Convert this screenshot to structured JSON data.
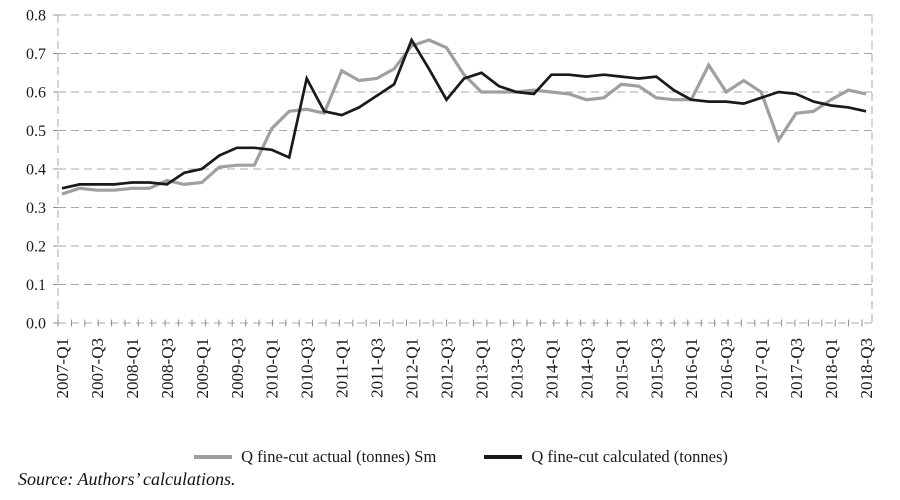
{
  "chart_data": {
    "type": "line",
    "title": "",
    "x_axis": {
      "tick_every": 2,
      "tick_labels": [
        "2007-Q1",
        "2007-Q3",
        "2008-Q1",
        "2008-Q3",
        "2009-Q1",
        "2009-Q3",
        "2010-Q1",
        "2010-Q3",
        "2011-Q1",
        "2011-Q3",
        "2012-Q1",
        "2012-Q3",
        "2013-Q1",
        "2013-Q3",
        "2014-Q1",
        "2014-Q3",
        "2015-Q1",
        "2015-Q3",
        "2016-Q1",
        "2016-Q3",
        "2017-Q1",
        "2017-Q3",
        "2018-Q1",
        "2018-Q3"
      ],
      "categories": [
        "2007-Q1",
        "2007-Q2",
        "2007-Q3",
        "2007-Q4",
        "2008-Q1",
        "2008-Q2",
        "2008-Q3",
        "2008-Q4",
        "2009-Q1",
        "2009-Q2",
        "2009-Q3",
        "2009-Q4",
        "2010-Q1",
        "2010-Q2",
        "2010-Q3",
        "2010-Q4",
        "2011-Q1",
        "2011-Q2",
        "2011-Q3",
        "2011-Q4",
        "2012-Q1",
        "2012-Q2",
        "2012-Q3",
        "2012-Q4",
        "2013-Q1",
        "2013-Q2",
        "2013-Q3",
        "2013-Q4",
        "2014-Q1",
        "2014-Q2",
        "2014-Q3",
        "2014-Q4",
        "2015-Q1",
        "2015-Q2",
        "2015-Q3",
        "2015-Q4",
        "2016-Q1",
        "2016-Q2",
        "2016-Q3",
        "2016-Q4",
        "2017-Q1",
        "2017-Q2",
        "2017-Q3",
        "2017-Q4",
        "2018-Q1",
        "2018-Q2",
        "2018-Q3"
      ]
    },
    "y_axis": {
      "min": 0.0,
      "max": 0.8,
      "step": 0.1,
      "tick_labels": [
        "0.0",
        "0.1",
        "0.2",
        "0.3",
        "0.4",
        "0.5",
        "0.6",
        "0.7",
        "0.8"
      ]
    },
    "grid": "horizontal-dashed",
    "legend_position": "bottom-center",
    "series": [
      {
        "name": "Q fine-cut actual (tonnes) Sm",
        "color": "#a0a0a0",
        "width": 3.2,
        "values": [
          0.335,
          0.35,
          0.345,
          0.345,
          0.35,
          0.35,
          0.37,
          0.36,
          0.365,
          0.405,
          0.41,
          0.41,
          0.505,
          0.55,
          0.555,
          0.545,
          0.655,
          0.63,
          0.635,
          0.66,
          0.72,
          0.735,
          0.715,
          0.645,
          0.6,
          0.6,
          0.6,
          0.605,
          0.6,
          0.595,
          0.58,
          0.585,
          0.62,
          0.615,
          0.585,
          0.58,
          0.58,
          0.67,
          0.6,
          0.63,
          0.6,
          0.475,
          0.545,
          0.55,
          0.58,
          0.605,
          0.595
        ]
      },
      {
        "name": "Q fine-cut calculated (tonnes)",
        "color": "#1a1a1a",
        "width": 2.7,
        "values": [
          0.35,
          0.36,
          0.36,
          0.36,
          0.365,
          0.365,
          0.36,
          0.39,
          0.4,
          0.435,
          0.455,
          0.455,
          0.45,
          0.43,
          0.635,
          0.55,
          0.54,
          0.56,
          0.59,
          0.62,
          0.735,
          0.66,
          0.58,
          0.635,
          0.65,
          0.615,
          0.6,
          0.595,
          0.645,
          0.645,
          0.64,
          0.645,
          0.64,
          0.635,
          0.64,
          0.605,
          0.58,
          0.575,
          0.575,
          0.57,
          0.585,
          0.6,
          0.595,
          0.575,
          0.565,
          0.56,
          0.55
        ]
      }
    ]
  },
  "source_note": "Source: Authors’ calculations.",
  "colors": {
    "grid": "#a8a8a8",
    "axis_text": "#1a1a1a",
    "background": "#ffffff"
  }
}
